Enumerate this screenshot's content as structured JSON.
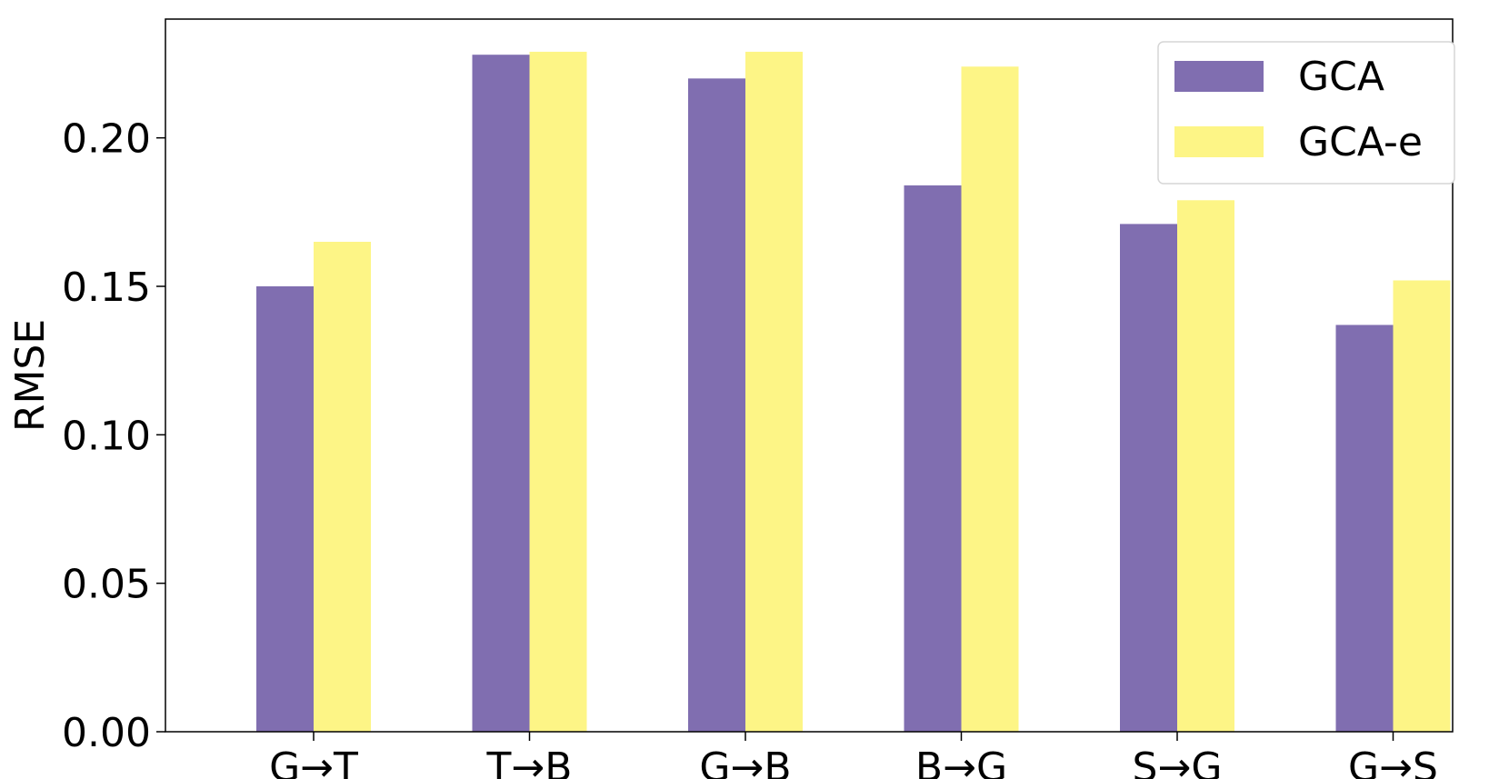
{
  "chart_data": {
    "type": "bar",
    "categories": [
      "G→T",
      "T→B",
      "G→B",
      "B→G",
      "S→G",
      "G→S"
    ],
    "series": [
      {
        "name": "GCA",
        "color": "#806eb0",
        "values": [
          0.15,
          0.228,
          0.22,
          0.184,
          0.171,
          0.137
        ]
      },
      {
        "name": "GCA-e",
        "color": "#fdf586",
        "values": [
          0.165,
          0.229,
          0.229,
          0.224,
          0.179,
          0.152
        ]
      }
    ],
    "title": "",
    "xlabel": "",
    "ylabel": "RMSE",
    "ylim": [
      0,
      0.24
    ],
    "yticks": [
      0.0,
      0.05,
      0.1,
      0.15,
      0.2
    ],
    "ytick_labels": [
      "0.00",
      "0.05",
      "0.10",
      "0.15",
      "0.20"
    ],
    "grid": false,
    "legend_position": "top-right"
  }
}
